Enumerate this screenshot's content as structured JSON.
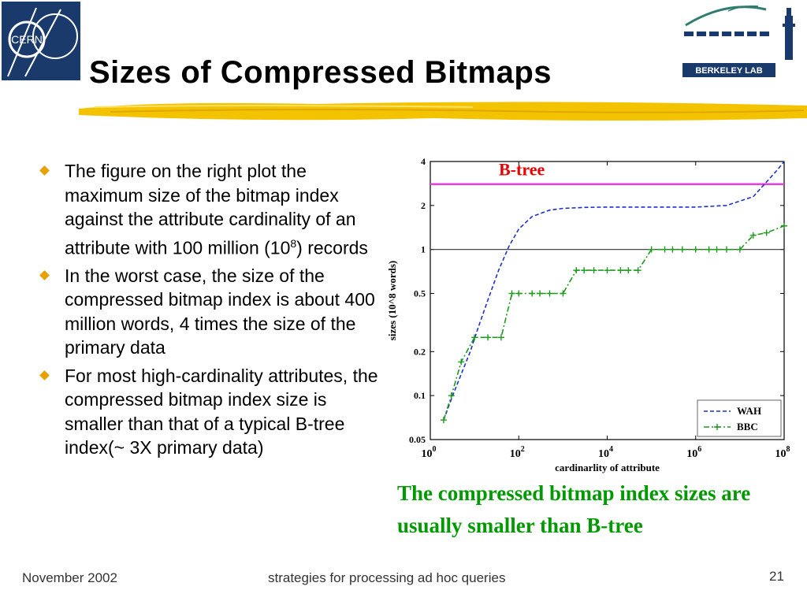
{
  "slide": {
    "title": "Sizes of Compressed Bitmaps",
    "logos": {
      "left_text": "CERN",
      "right_text": "BERKELEY LAB"
    },
    "bullets": [
      {
        "text": "The figure on the right plot the maximum size of the bitmap index against the attribute cardinality of an attribute with 100 million (10",
        "sup": "8",
        "tail": ") records"
      },
      {
        "text": "In the worst case, the size of the compressed bitmap index is about 400 million words, 4 times the size of the primary data"
      },
      {
        "text": "For most high-cardinality attributes, the compressed bitmap index size is smaller than that of a typical B-tree index(~ 3X primary data)"
      }
    ],
    "caption": "The compressed bitmap index sizes are usually smaller than B-tree",
    "footer": {
      "date": "November 2002",
      "subject": "strategies for processing ad hoc queries",
      "page": "21"
    }
  },
  "chart_data": {
    "type": "line",
    "x_scale": "log",
    "y_scale": "log",
    "xlabel": "cardinarlity of attribute",
    "ylabel": "sizes (10^8 words)",
    "xlim": [
      1,
      100000000
    ],
    "ylim": [
      0.05,
      4
    ],
    "x_ticks": [
      {
        "value": 1,
        "base": "10",
        "exp": "0"
      },
      {
        "value": 100,
        "base": "10",
        "exp": "2"
      },
      {
        "value": 10000,
        "base": "10",
        "exp": "4"
      },
      {
        "value": 1000000,
        "base": "10",
        "exp": "6"
      },
      {
        "value": 100000000,
        "base": "10",
        "exp": "8"
      }
    ],
    "y_ticks": [
      {
        "value": 0.05,
        "label": "0.05"
      },
      {
        "value": 0.1,
        "label": "0.1"
      },
      {
        "value": 0.2,
        "label": "0.2"
      },
      {
        "value": 0.5,
        "label": "0.5"
      },
      {
        "value": 1,
        "label": "1"
      },
      {
        "value": 2,
        "label": "2"
      },
      {
        "value": 4,
        "label": "4"
      }
    ],
    "reference_lines": [
      {
        "label": "B-tree",
        "value": 2.8,
        "color": "#e93ee0"
      },
      {
        "label": "",
        "value": 1,
        "color": "#333333"
      }
    ],
    "legend_position": "bottom-right",
    "series": [
      {
        "name": "WAH",
        "color": "#2030c8",
        "style": "dashed",
        "x": [
          2,
          3,
          5,
          8,
          12,
          20,
          35,
          60,
          100,
          200,
          500,
          1000,
          3000,
          10000,
          100000,
          1000000,
          5000000,
          20000000,
          40000000,
          70000000,
          100000000
        ],
        "y": [
          0.068,
          0.095,
          0.14,
          0.2,
          0.29,
          0.45,
          0.72,
          1.05,
          1.38,
          1.68,
          1.86,
          1.91,
          1.94,
          1.95,
          1.95,
          1.95,
          2.0,
          2.3,
          2.9,
          3.5,
          4.0
        ]
      },
      {
        "name": "BBC",
        "color": "#1e9a1e",
        "style": "dash-dot-plus",
        "x": [
          2,
          3,
          5,
          10,
          20,
          40,
          70,
          100,
          200,
          300,
          500,
          1000,
          2000,
          3000,
          5000,
          10000,
          20000,
          30000,
          50000,
          100000,
          200000,
          300000,
          500000,
          1000000,
          2000000,
          3000000,
          5000000,
          10000000,
          20000000,
          40000000,
          100000000
        ],
        "y": [
          0.068,
          0.1,
          0.17,
          0.25,
          0.25,
          0.25,
          0.5,
          0.5,
          0.5,
          0.5,
          0.5,
          0.5,
          0.72,
          0.72,
          0.72,
          0.72,
          0.72,
          0.72,
          0.72,
          1.0,
          1.0,
          1.0,
          1.0,
          1.0,
          1.0,
          1.0,
          1.0,
          1.0,
          1.25,
          1.3,
          1.45
        ]
      }
    ]
  }
}
